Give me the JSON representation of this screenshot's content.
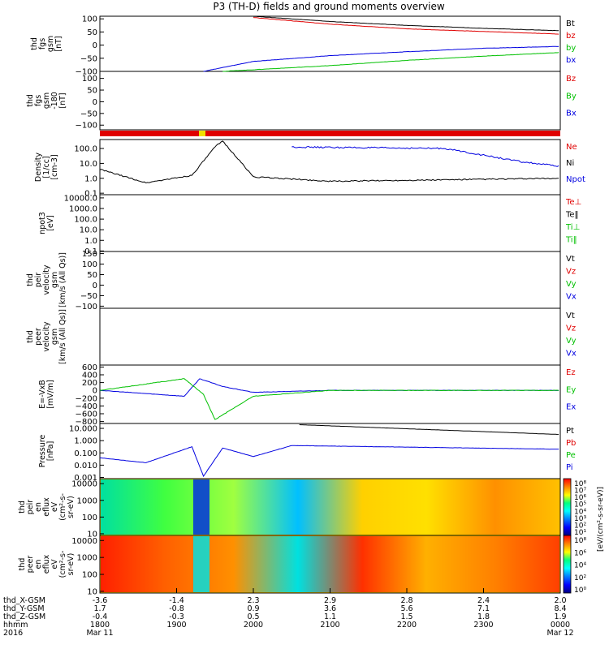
{
  "chart_data": {
    "type": "line",
    "title": "P3 (TH-D) fields and ground moments overview",
    "date_year": "2016",
    "time_axis": {
      "ticks": [
        "1800",
        "1900",
        "2000",
        "2100",
        "2200",
        "2300",
        "0000"
      ],
      "start_label": "Mar 11",
      "end_label": "Mar 12",
      "coord_rows": [
        {
          "label": "thd_X-GSM",
          "values": [
            "-3.6",
            "-1.4",
            "2.3",
            "2.9",
            "2.8",
            "2.4",
            "2.0"
          ]
        },
        {
          "label": "thd_Y-GSM",
          "values": [
            "1.7",
            "-0.8",
            "0.9",
            "3.6",
            "5.6",
            "7.1",
            "8.4"
          ]
        },
        {
          "label": "thd_Z-GSM",
          "values": [
            "-0.4",
            "-0.3",
            "0.5",
            "1.1",
            "1.5",
            "1.8",
            "1.9"
          ]
        },
        {
          "label": "hhmm",
          "values": [
            "1800",
            "1900",
            "2000",
            "2100",
            "2200",
            "2300",
            "0000"
          ]
        }
      ]
    },
    "panels": [
      {
        "ylabel": [
          "thd",
          "fgs",
          "gsm",
          "[nT]"
        ],
        "ticks": [
          "100",
          "50",
          "0",
          "−50",
          "−100"
        ],
        "tick_vals": [
          100,
          50,
          0,
          -50,
          -100
        ],
        "ylim": [
          -100,
          110
        ],
        "legend": [
          {
            "name": "Bt",
            "color": "#000000"
          },
          {
            "name": "bz",
            "color": "#e00000"
          },
          {
            "name": "by",
            "color": "#00c000"
          },
          {
            "name": "bx",
            "color": "#0000e0"
          }
        ]
      },
      {
        "ylabel": [
          "thd",
          "fgs",
          "gsm",
          "-180",
          "[nT]"
        ],
        "ticks": [
          "100",
          "50",
          "0",
          "−50",
          "−100"
        ],
        "tick_vals": [
          100,
          50,
          0,
          -50,
          -100
        ],
        "ylim": [
          -120,
          130
        ],
        "legend": [
          {
            "name": "Bz",
            "color": "#e00000"
          },
          {
            "name": "By",
            "color": "#00c000"
          },
          {
            "name": "Bx",
            "color": "#0000e0"
          }
        ]
      },
      {
        "ylabel": [
          "Density",
          "[1/cc]",
          "[cm-3]"
        ],
        "ticks": [
          "100.0",
          "10.0",
          "1.0",
          "0.1"
        ],
        "tick_vals": [
          2,
          1,
          0,
          -1
        ],
        "ylim": [
          -1.1,
          2.6
        ],
        "legend": [
          {
            "name": "Ne",
            "color": "#e00000"
          },
          {
            "name": "Ni",
            "color": "#000000"
          },
          {
            "name": "Npot",
            "color": "#0000e0"
          }
        ]
      },
      {
        "ylabel": [
          "npot3",
          "[eV]"
        ],
        "ticks": [
          "10000.0",
          "1000.0",
          "100.0",
          "10.0",
          "1.0",
          "0.1"
        ],
        "tick_vals": [
          4,
          3,
          2,
          1,
          0,
          -1
        ],
        "ylim": [
          -1.05,
          4.3
        ],
        "legend": [
          {
            "name": "Te⊥",
            "color": "#e00000"
          },
          {
            "name": "Te‖",
            "color": "#000000"
          },
          {
            "name": "Ti⊥",
            "color": "#00c000"
          },
          {
            "name": "Ti‖",
            "color": "#00c000"
          }
        ]
      },
      {
        "ylabel": [
          "thd",
          "peir",
          "velocity",
          "gsm",
          "[km/s (All Qs)]"
        ],
        "ticks": [
          "150",
          "100",
          "50",
          "0",
          "−50",
          "−100"
        ],
        "tick_vals": [
          150,
          100,
          50,
          0,
          -50,
          -100
        ],
        "ylim": [
          -110,
          160
        ],
        "legend": [
          {
            "name": "Vt",
            "color": "#000000"
          },
          {
            "name": "Vz",
            "color": "#e00000"
          },
          {
            "name": "Vy",
            "color": "#00c000"
          },
          {
            "name": "Vx",
            "color": "#0000e0"
          }
        ]
      },
      {
        "ylabel": [
          "thd",
          "peer",
          "velocity",
          "gsm",
          "[km/s (All Qs)]"
        ],
        "ticks": [],
        "tick_vals": [],
        "ylim": [
          -100,
          100
        ],
        "legend": [
          {
            "name": "Vt",
            "color": "#000000"
          },
          {
            "name": "Vz",
            "color": "#e00000"
          },
          {
            "name": "Vy",
            "color": "#00c000"
          },
          {
            "name": "Vx",
            "color": "#0000e0"
          }
        ]
      },
      {
        "ylabel": [
          "E=-VxB",
          "[mV/m]"
        ],
        "ticks": [
          "600",
          "400",
          "200",
          "0",
          "−200",
          "−400",
          "−600",
          "−800"
        ],
        "tick_vals": [
          600,
          400,
          200,
          0,
          -200,
          -400,
          -600,
          -800
        ],
        "ylim": [
          -850,
          650
        ],
        "legend": [
          {
            "name": "Ez",
            "color": "#e00000"
          },
          {
            "name": "Ey",
            "color": "#00c000"
          },
          {
            "name": "Ex",
            "color": "#0000e0"
          }
        ]
      },
      {
        "ylabel": [
          "Pressure",
          "[nPa]"
        ],
        "ticks": [
          "10.000",
          "1.000",
          "0.100",
          "0.010",
          "0.001"
        ],
        "tick_vals": [
          1,
          0,
          -1,
          -2,
          -3
        ],
        "ylim": [
          -3.1,
          1.4
        ],
        "legend": [
          {
            "name": "Pt",
            "color": "#000000"
          },
          {
            "name": "Pb",
            "color": "#e00000"
          },
          {
            "name": "Pe",
            "color": "#00c000"
          },
          {
            "name": "Pi",
            "color": "#0000e0"
          }
        ]
      },
      {
        "ylabel": [
          "thd",
          "peir",
          "en",
          "eflux",
          "eV",
          "(cm²-s-",
          "sr-eV)"
        ],
        "ticks": [
          "10000",
          "1000",
          "100",
          "10"
        ],
        "tick_vals": [
          4,
          3,
          2,
          1
        ],
        "ylim": [
          0.9,
          4.3
        ],
        "colorbar": {
          "ticks": [
            "10⁸",
            "10⁷",
            "10⁶",
            "10⁵",
            "10⁴",
            "10³",
            "10²",
            "10¹"
          ],
          "label": "[eV/(cm²-s-sr-eV)] (All Qs)"
        }
      },
      {
        "ylabel": [
          "thd",
          "peer",
          "en",
          "eflux",
          "eV",
          "(cm²-s-",
          "sr-eV)"
        ],
        "ticks": [
          "10000",
          "1000",
          "100",
          "10"
        ],
        "tick_vals": [
          4,
          3,
          2,
          1
        ],
        "ylim": [
          0.9,
          4.3
        ],
        "colorbar": {
          "ticks": [
            "10⁸",
            "10⁶",
            "10⁴",
            "10²",
            "10⁰"
          ],
          "label": "[eV/(cm²-s-sr-eV)]"
        }
      }
    ],
    "series_samples": {
      "Bt": [
        [
          0,
          null
        ],
        [
          150,
          null
        ],
        [
          200,
          110
        ],
        [
          300,
          90
        ],
        [
          400,
          75
        ],
        [
          500,
          64
        ],
        [
          600,
          55
        ]
      ],
      "bz": [
        [
          200,
          105
        ],
        [
          300,
          80
        ],
        [
          400,
          62
        ],
        [
          500,
          52
        ],
        [
          600,
          42
        ]
      ],
      "by": [
        [
          160,
          -100
        ],
        [
          300,
          -78
        ],
        [
          400,
          -58
        ],
        [
          500,
          -42
        ],
        [
          600,
          -28
        ]
      ],
      "bx": [
        [
          135,
          -100
        ],
        [
          200,
          -62
        ],
        [
          300,
          -40
        ],
        [
          400,
          -25
        ],
        [
          500,
          -12
        ],
        [
          600,
          -5
        ]
      ],
      "Ni": [
        [
          0,
          0.6
        ],
        [
          60,
          -0.3
        ],
        [
          120,
          0.2
        ],
        [
          150,
          2.1
        ],
        [
          160,
          2.5
        ],
        [
          200,
          0.1
        ],
        [
          300,
          -0.2
        ],
        [
          600,
          0.0
        ]
      ],
      "Npot": [
        [
          250,
          2.1
        ],
        [
          450,
          2.0
        ],
        [
          550,
          1.1
        ],
        [
          600,
          0.8
        ]
      ],
      "Pi": [
        [
          0,
          -1.4
        ],
        [
          60,
          -1.8
        ],
        [
          120,
          -0.5
        ],
        [
          135,
          -2.9
        ],
        [
          160,
          -0.6
        ],
        [
          200,
          -1.3
        ],
        [
          250,
          -0.4
        ],
        [
          600,
          -0.7
        ]
      ],
      "Pt": [
        [
          260,
          1.3
        ],
        [
          600,
          0.5
        ]
      ],
      "Ex": [
        [
          0,
          0
        ],
        [
          110,
          -150
        ],
        [
          130,
          300
        ],
        [
          160,
          100
        ],
        [
          200,
          -50
        ],
        [
          300,
          0
        ],
        [
          600,
          0
        ]
      ],
      "Ey": [
        [
          0,
          0
        ],
        [
          110,
          300
        ],
        [
          135,
          -100
        ],
        [
          150,
          -750
        ],
        [
          200,
          -150
        ],
        [
          300,
          0
        ],
        [
          600,
          0
        ]
      ]
    }
  }
}
